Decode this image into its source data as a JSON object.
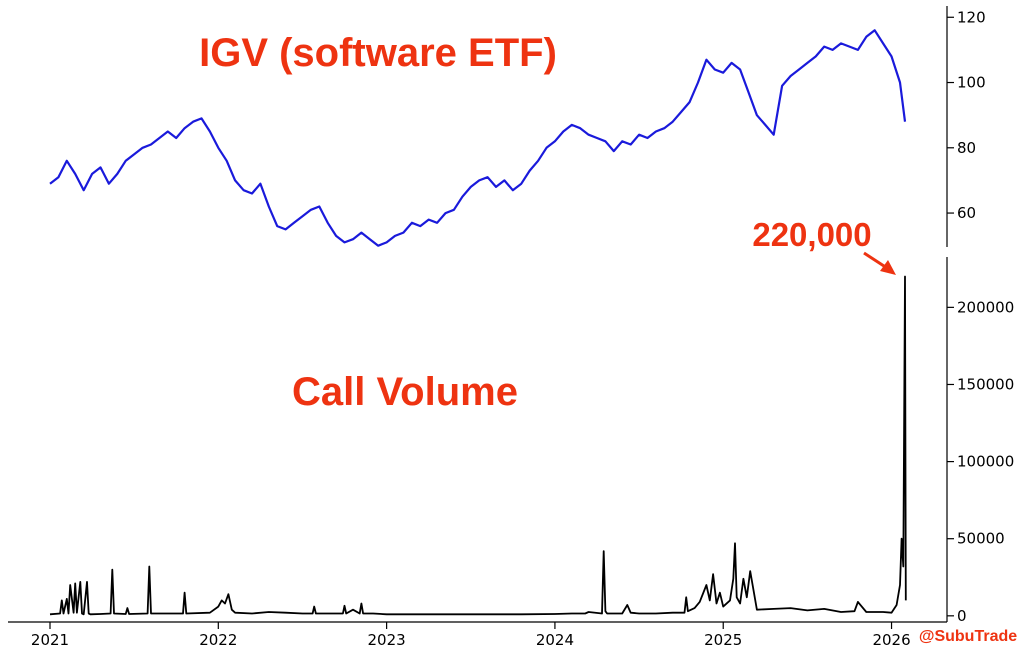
{
  "colors": {
    "price_line": "#1a1adb",
    "volume_line": "#000000",
    "annotation": "#ee3311"
  },
  "chart_data": [
    {
      "type": "line",
      "name": "igv-price",
      "title": "IGV (software ETF)",
      "x_range": [
        2021.0,
        2026.08
      ],
      "ylim": [
        45,
        121
      ],
      "y_ticks": [
        60,
        80,
        100,
        120
      ],
      "y_axis_side": "right",
      "grid": false,
      "series": [
        {
          "x": [
            2021.0,
            2021.05,
            2021.1,
            2021.15,
            2021.2,
            2021.25,
            2021.3,
            2021.35,
            2021.4,
            2021.45,
            2021.5,
            2021.55,
            2021.6,
            2021.65,
            2021.7,
            2021.75,
            2021.8,
            2021.85,
            2021.9,
            2021.95,
            2022.0,
            2022.05,
            2022.1,
            2022.15,
            2022.2,
            2022.25,
            2022.3,
            2022.35,
            2022.4,
            2022.45,
            2022.5,
            2022.55,
            2022.6,
            2022.65,
            2022.7,
            2022.75,
            2022.8,
            2022.85,
            2022.9,
            2022.95,
            2023.0,
            2023.05,
            2023.1,
            2023.15,
            2023.2,
            2023.25,
            2023.3,
            2023.35,
            2023.4,
            2023.45,
            2023.5,
            2023.55,
            2023.6,
            2023.65,
            2023.7,
            2023.75,
            2023.8,
            2023.85,
            2023.9,
            2023.95,
            2024.0,
            2024.05,
            2024.1,
            2024.15,
            2024.2,
            2024.25,
            2024.3,
            2024.35,
            2024.4,
            2024.45,
            2024.5,
            2024.55,
            2024.6,
            2024.65,
            2024.7,
            2024.75,
            2024.8,
            2024.85,
            2024.9,
            2024.95,
            2025.0,
            2025.05,
            2025.1,
            2025.15,
            2025.2,
            2025.25,
            2025.3,
            2025.35,
            2025.4,
            2025.45,
            2025.5,
            2025.55,
            2025.6,
            2025.65,
            2025.7,
            2025.75,
            2025.8,
            2025.85,
            2025.9,
            2025.95,
            2026.0,
            2026.05,
            2026.08
          ],
          "y": [
            69,
            71,
            76,
            72,
            67,
            72,
            74,
            69,
            72,
            76,
            78,
            80,
            81,
            83,
            85,
            83,
            86,
            88,
            89,
            85,
            80,
            76,
            70,
            67,
            66,
            69,
            62,
            56,
            55,
            57,
            59,
            61,
            62,
            57,
            53,
            51,
            52,
            54,
            52,
            50,
            51,
            53,
            54,
            57,
            56,
            58,
            57,
            60,
            61,
            65,
            68,
            70,
            71,
            68,
            70,
            67,
            69,
            73,
            76,
            80,
            82,
            85,
            87,
            86,
            84,
            83,
            82,
            79,
            82,
            81,
            84,
            83,
            85,
            86,
            88,
            91,
            94,
            100,
            107,
            104,
            103,
            106,
            104,
            97,
            90,
            87,
            84,
            99,
            102,
            104,
            106,
            108,
            111,
            110,
            112,
            111,
            110,
            114,
            116,
            112,
            108,
            100,
            88
          ]
        }
      ]
    },
    {
      "type": "line",
      "name": "call-volume",
      "title": "Call Volume",
      "x_range": [
        2021.0,
        2026.08
      ],
      "ylim": [
        -4000,
        232000
      ],
      "y_ticks": [
        0,
        50000,
        100000,
        150000,
        200000
      ],
      "y_axis_side": "right",
      "x_ticks": [
        2021,
        2022,
        2023,
        2024,
        2025,
        2026
      ],
      "grid": false,
      "annotation": {
        "text": "220,000",
        "x": 2026.08,
        "y": 220000
      },
      "series": [
        {
          "x": [
            2021.0,
            2021.06,
            2021.07,
            2021.08,
            2021.1,
            2021.11,
            2021.12,
            2021.14,
            2021.15,
            2021.16,
            2021.18,
            2021.19,
            2021.2,
            2021.22,
            2021.23,
            2021.24,
            2021.3,
            2021.36,
            2021.37,
            2021.38,
            2021.45,
            2021.46,
            2021.47,
            2021.58,
            2021.59,
            2021.6,
            2021.7,
            2021.79,
            2021.8,
            2021.81,
            2021.95,
            2022.0,
            2022.02,
            2022.04,
            2022.06,
            2022.08,
            2022.1,
            2022.2,
            2022.3,
            2022.4,
            2022.5,
            2022.56,
            2022.57,
            2022.58,
            2022.65,
            2022.7,
            2022.74,
            2022.75,
            2022.76,
            2022.8,
            2022.84,
            2022.85,
            2022.86,
            2022.92,
            2023.0,
            2023.2,
            2023.4,
            2023.6,
            2023.8,
            2024.0,
            2024.1,
            2024.18,
            2024.2,
            2024.28,
            2024.29,
            2024.3,
            2024.31,
            2024.4,
            2024.43,
            2024.45,
            2024.5,
            2024.6,
            2024.7,
            2024.77,
            2024.78,
            2024.79,
            2024.83,
            2024.86,
            2024.9,
            2024.92,
            2024.94,
            2024.96,
            2024.98,
            2025.0,
            2025.04,
            2025.06,
            2025.07,
            2025.08,
            2025.1,
            2025.12,
            2025.14,
            2025.16,
            2025.2,
            2025.3,
            2025.4,
            2025.5,
            2025.6,
            2025.7,
            2025.78,
            2025.8,
            2025.85,
            2025.9,
            2025.95,
            2026.0,
            2026.03,
            2026.05,
            2026.06,
            2026.07,
            2026.08,
            2026.085
          ],
          "y": [
            1000,
            1500,
            10000,
            1500,
            11000,
            1500,
            20000,
            2000,
            21000,
            2000,
            22000,
            1500,
            1000,
            22000,
            1500,
            1000,
            1200,
            1500,
            30000,
            1500,
            1200,
            5000,
            1200,
            1500,
            32000,
            1500,
            1500,
            1500,
            15000,
            1500,
            2000,
            6000,
            10000,
            8000,
            14000,
            4000,
            2000,
            1500,
            2500,
            2000,
            1500,
            1500,
            6000,
            1500,
            1500,
            1500,
            1500,
            6500,
            1500,
            4000,
            1500,
            8000,
            1500,
            1500,
            1000,
            1000,
            1000,
            1000,
            1000,
            1200,
            1500,
            1500,
            2500,
            1500,
            42000,
            3000,
            1500,
            1500,
            7000,
            2000,
            1500,
            1500,
            2000,
            2000,
            12000,
            3000,
            5000,
            9000,
            20000,
            10000,
            27000,
            8000,
            15000,
            6000,
            10000,
            24000,
            47000,
            12000,
            8000,
            24000,
            12000,
            29000,
            4000,
            4500,
            5000,
            3500,
            4500,
            2500,
            3000,
            9000,
            2500,
            2500,
            2500,
            2000,
            7000,
            20000,
            50000,
            32000,
            220000,
            10000
          ]
        }
      ]
    }
  ],
  "branding": {
    "handle": "@SubuTrade"
  }
}
